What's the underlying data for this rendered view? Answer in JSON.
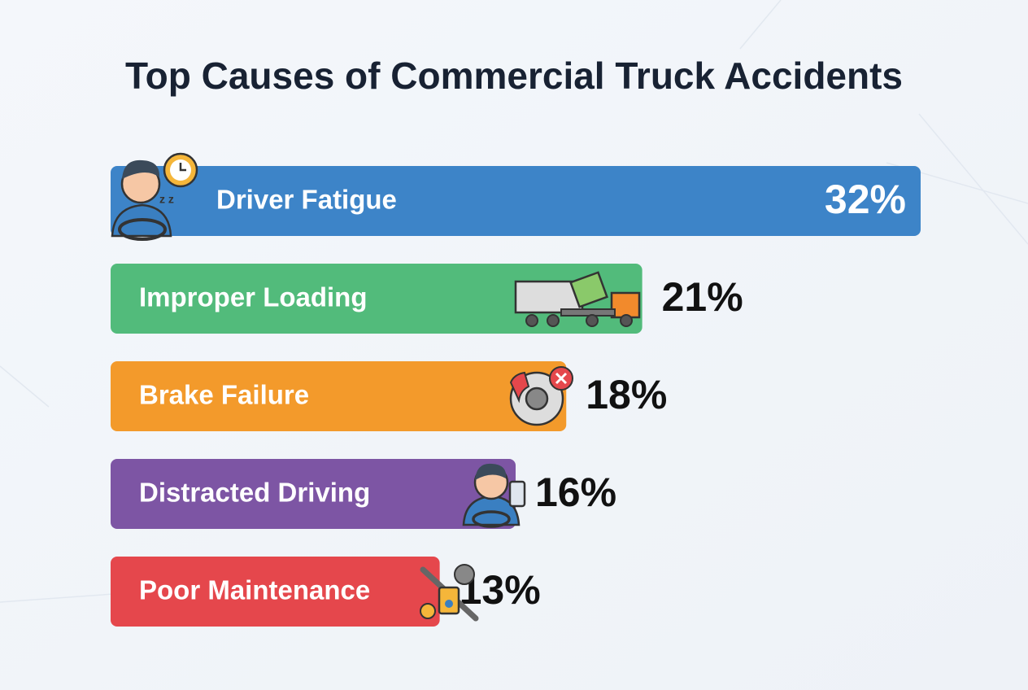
{
  "chart_data": {
    "type": "hbar",
    "title": "Top Causes of Commercial Truck Accidents",
    "categories": [
      "Driver Fatigue",
      "Improper Loading",
      "Brake Failure",
      "Distracted Driving",
      "Poor Maintenance"
    ],
    "values": [
      32,
      21,
      18,
      16,
      13
    ],
    "value_labels": [
      "32%",
      "21%",
      "18%",
      "16%",
      "13%"
    ],
    "colors": [
      "#3d84c8",
      "#52bb7b",
      "#f39a2b",
      "#7d55a4",
      "#e5474c"
    ]
  }
}
